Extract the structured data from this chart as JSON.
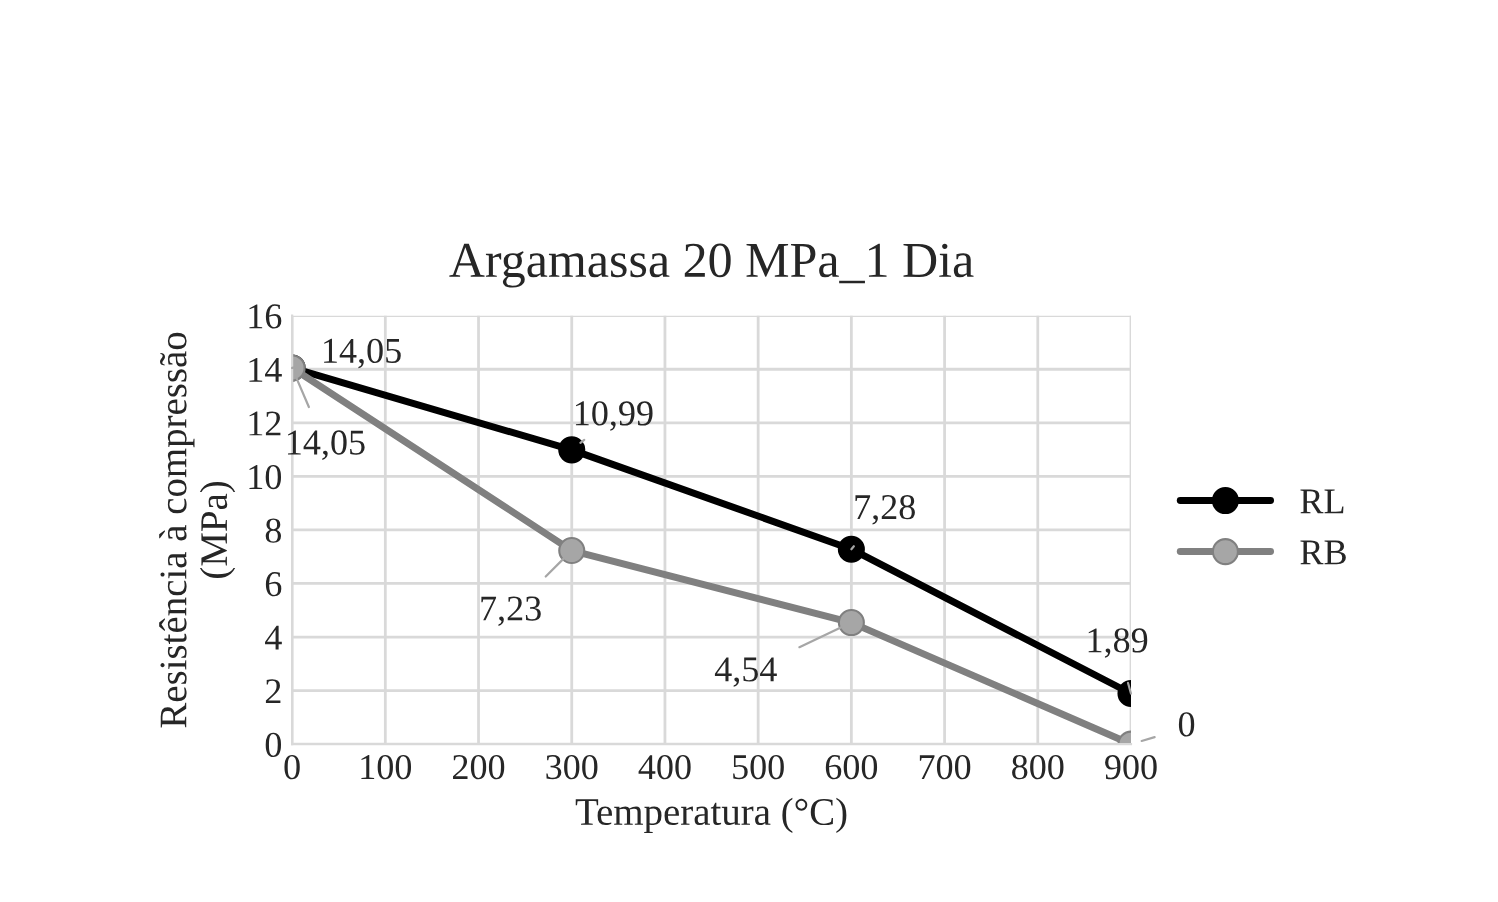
{
  "chart_data": {
    "type": "line",
    "title": "Argamassa 20 MPa_1 Dia",
    "xlabel": "Temperatura (°C)",
    "ylabel": "Resistência à compressão\n(MPa)",
    "x": [
      0,
      300,
      600,
      900
    ],
    "series": [
      {
        "name": "RL",
        "color": "#000000",
        "values": [
          14.05,
          10.99,
          7.28,
          1.89
        ],
        "value_labels": [
          "14,05",
          "10,99",
          "7,28",
          "1,89"
        ]
      },
      {
        "name": "RB",
        "color": "#808080",
        "values": [
          14.05,
          7.23,
          4.54,
          0
        ],
        "value_labels": [
          "14,05",
          "7,23",
          "4,54",
          "0"
        ]
      }
    ],
    "xlim": [
      0,
      900
    ],
    "xticks": [
      0,
      100,
      200,
      300,
      400,
      500,
      600,
      700,
      800,
      900
    ],
    "ylim": [
      0,
      16
    ],
    "yticks": [
      0,
      2,
      4,
      6,
      8,
      10,
      12,
      14,
      16
    ],
    "grid": true,
    "legend": "right",
    "marker": "circle",
    "line_style": "solid"
  }
}
